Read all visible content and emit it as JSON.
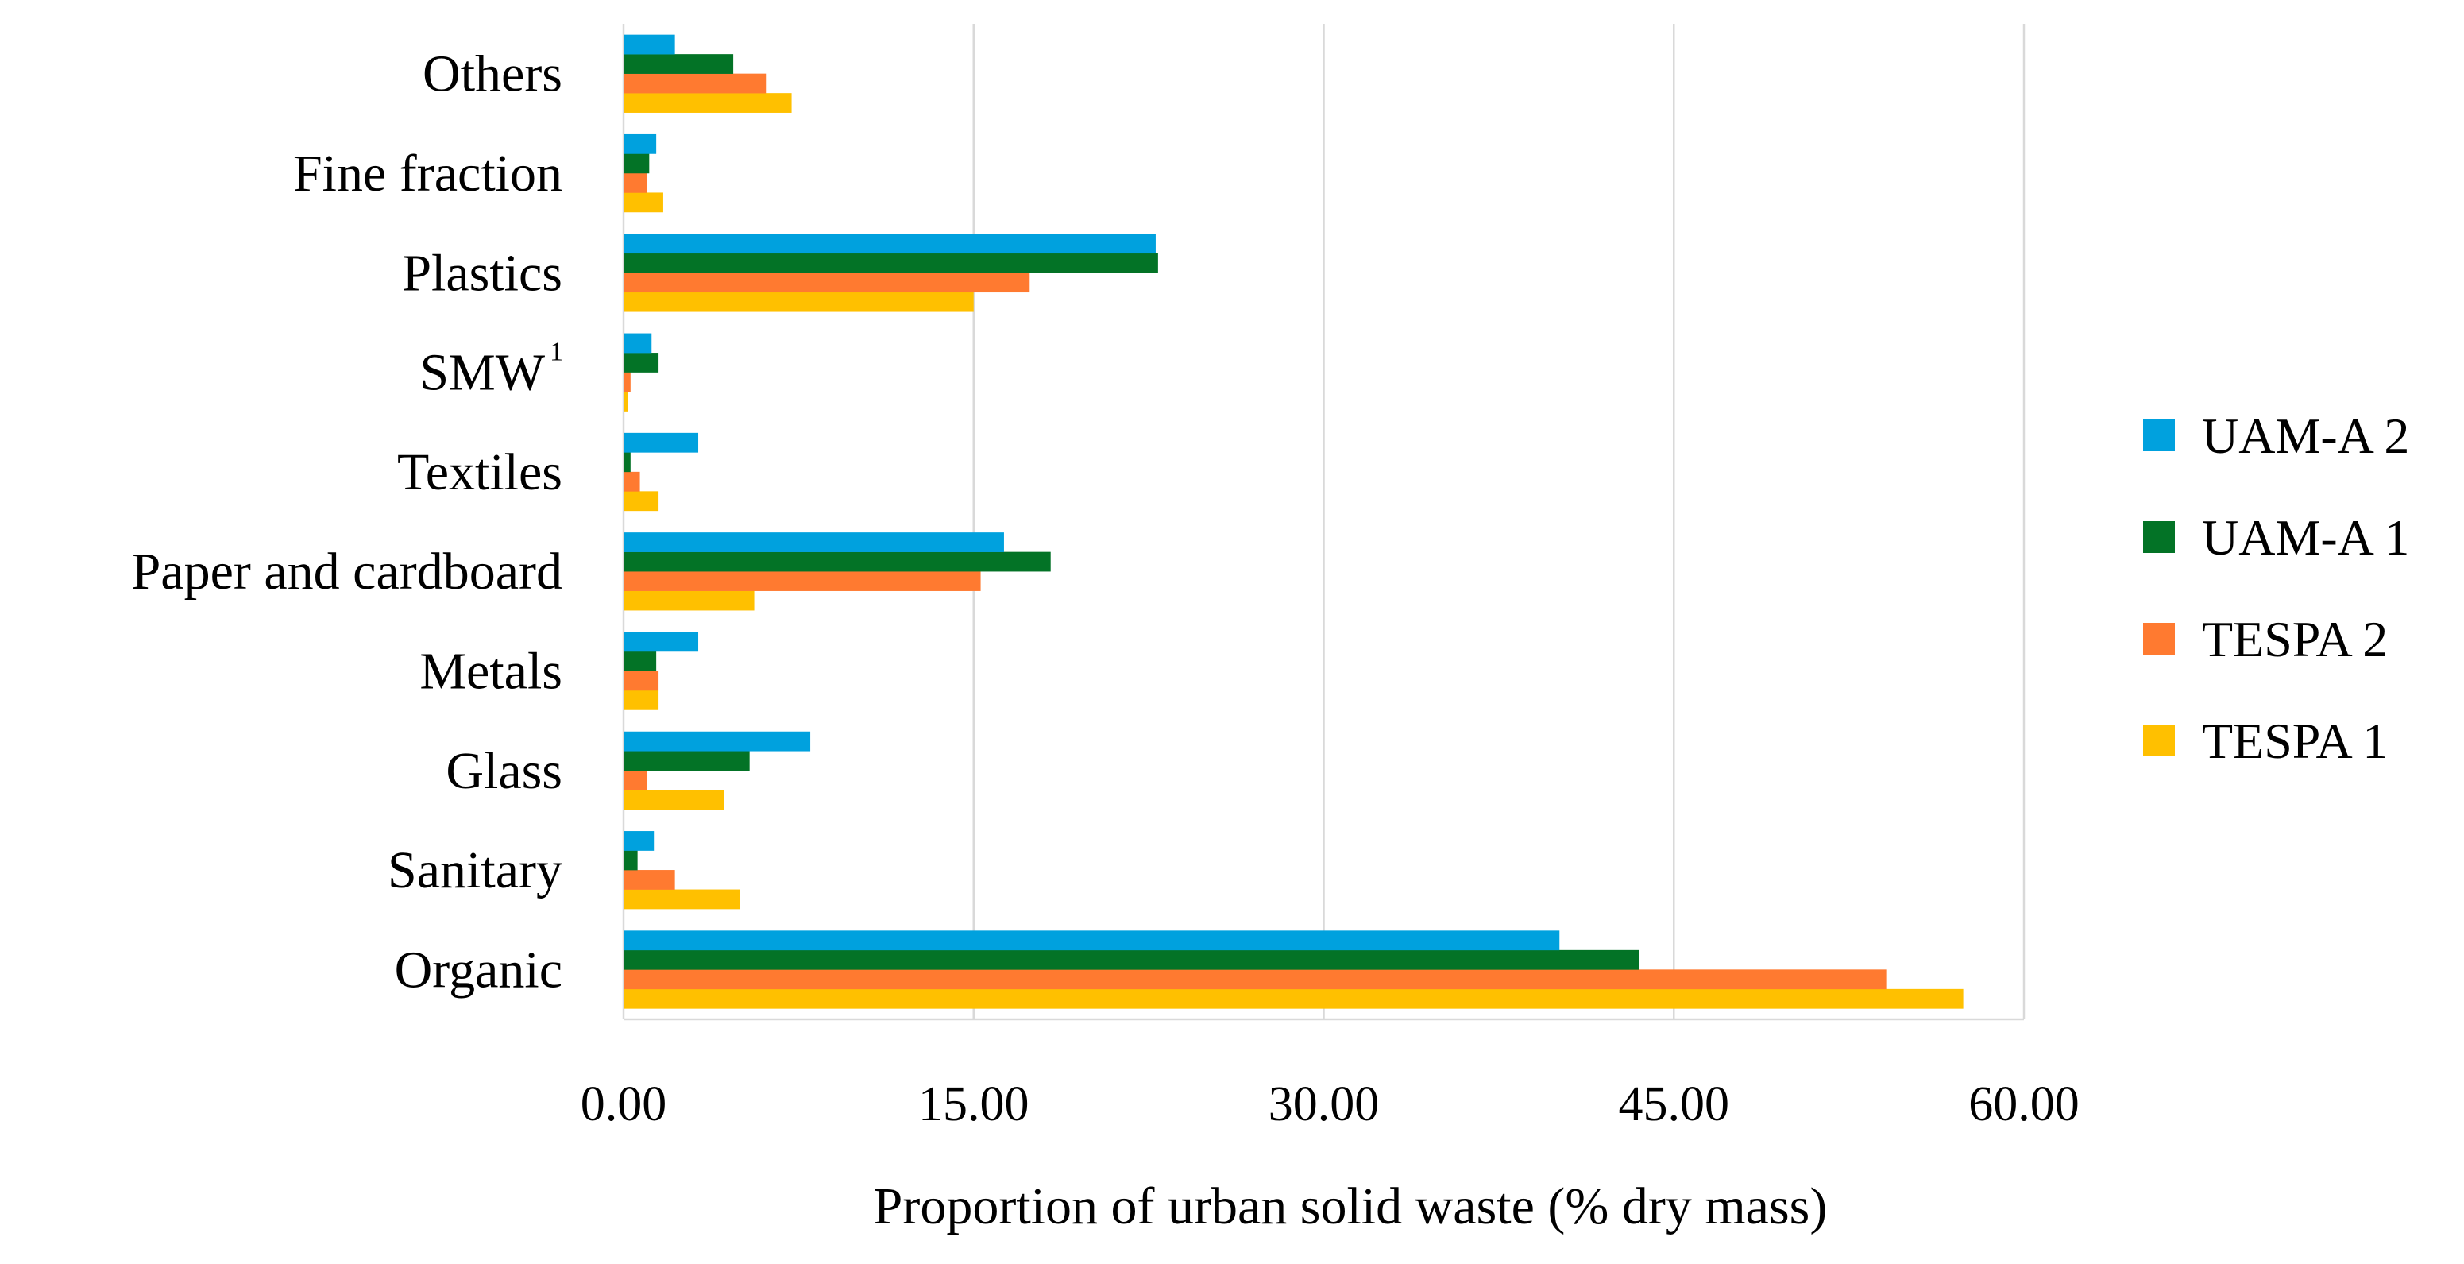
{
  "chart_data": {
    "type": "bar",
    "orientation": "horizontal",
    "title": "",
    "xlabel": "Proportion of urban solid waste (% dry mass)",
    "ylabel": "",
    "xlim": [
      0,
      60
    ],
    "xticks": [
      "0.00",
      "15.00",
      "30.00",
      "45.00",
      "60.00"
    ],
    "grid": "vertical",
    "legend_position": "right",
    "categories": [
      {
        "label": "Organic",
        "sup": ""
      },
      {
        "label": "Sanitary",
        "sup": ""
      },
      {
        "label": "Glass",
        "sup": ""
      },
      {
        "label": "Metals",
        "sup": ""
      },
      {
        "label": "Paper and cardboard",
        "sup": ""
      },
      {
        "label": "Textiles",
        "sup": ""
      },
      {
        "label": "SMW",
        "sup": "1"
      },
      {
        "label": "Plastics",
        "sup": ""
      },
      {
        "label": "Fine fraction",
        "sup": ""
      },
      {
        "label": "Others",
        "sup": ""
      }
    ],
    "series": [
      {
        "name": "TESPA 1",
        "color": "#FFC000",
        "values": [
          57.4,
          5.0,
          4.3,
          1.5,
          5.6,
          1.5,
          0.2,
          15.0,
          1.7,
          7.2
        ]
      },
      {
        "name": "TESPA 2",
        "color": "#FF7A30",
        "values": [
          54.1,
          2.2,
          1.0,
          1.5,
          15.3,
          0.7,
          0.3,
          17.4,
          1.0,
          6.1
        ]
      },
      {
        "name": "UAM-A 1",
        "color": "#037326",
        "values": [
          43.5,
          0.6,
          5.4,
          1.4,
          18.3,
          0.3,
          1.5,
          22.9,
          1.1,
          4.7
        ]
      },
      {
        "name": "UAM-A 2",
        "color": "#00A1DE",
        "values": [
          40.1,
          1.3,
          8.0,
          3.2,
          16.3,
          3.2,
          1.2,
          22.8,
          1.4,
          2.2
        ]
      }
    ],
    "legend_order": [
      "UAM-A 2",
      "UAM-A 1",
      "TESPA 2",
      "TESPA 1"
    ]
  }
}
